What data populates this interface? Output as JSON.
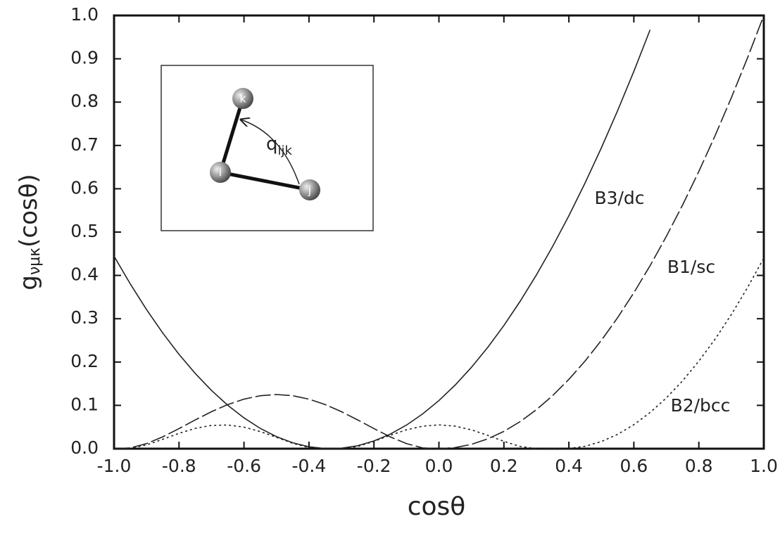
{
  "chart_data": {
    "type": "line",
    "x_label": "cosθ",
    "y_label": {
      "base": "g",
      "subscript": "νμκ",
      "rest": "(cosθ)"
    },
    "x": [
      -1.0,
      -0.95,
      -0.9,
      -0.85,
      -0.8,
      -0.75,
      -0.7,
      -0.65,
      -0.6,
      -0.55,
      -0.5,
      -0.45,
      -0.4,
      -0.35,
      -0.3,
      -0.25,
      -0.2,
      -0.15,
      -0.1,
      -0.05,
      0.0,
      0.05,
      0.1,
      0.15,
      0.2,
      0.25,
      0.3,
      0.35,
      0.4,
      0.45,
      0.5,
      0.55,
      0.6,
      0.65,
      0.7,
      0.75,
      0.8,
      0.85,
      0.9,
      0.95,
      1.0
    ],
    "series": [
      {
        "name": "B3/dc",
        "color": "#222222",
        "style": "solid",
        "values": [
          0.4444,
          0.3803,
          0.3211,
          0.2669,
          0.2178,
          0.1736,
          0.1344,
          0.1003,
          0.0711,
          0.0469,
          0.0278,
          0.0136,
          0.0044,
          0.0003,
          0.0011,
          0.0069,
          0.0178,
          0.0336,
          0.0544,
          0.0803,
          0.1111,
          0.1469,
          0.1878,
          0.2336,
          0.2844,
          0.3403,
          0.4011,
          0.4669,
          0.5378,
          0.6136,
          0.6944,
          0.7803,
          0.8711,
          0.9669,
          null,
          null,
          null,
          null,
          null,
          null,
          null
        ]
      },
      {
        "name": "B1/sc",
        "color": "#222222",
        "style": "dashed",
        "values": [
          0,
          0.0018,
          0.0117,
          0.0274,
          0.0464,
          0.0664,
          0.0854,
          0.1018,
          0.1144,
          0.1223,
          0.125,
          0.1223,
          0.1144,
          0.1018,
          0.0854,
          0.0664,
          0.0464,
          0.0274,
          0.0117,
          0.0018,
          0,
          0.0025,
          0.01,
          0.0225,
          0.04,
          0.0625,
          0.09,
          0.1225,
          0.16,
          0.2025,
          0.25,
          0.3025,
          0.36,
          0.4225,
          0.49,
          0.5625,
          0.64,
          0.7225,
          0.81,
          0.9025,
          1.0
        ]
      },
      {
        "name": "B2/bcc",
        "color": "#222222",
        "style": "dotted",
        "values": [
          0,
          0.0006,
          0.0087,
          0.0217,
          0.0355,
          0.0469,
          0.0537,
          0.0547,
          0.0497,
          0.0396,
          0.0262,
          0.0125,
          0.0024,
          0,
          0,
          0.0051,
          0.017,
          0.0309,
          0.0435,
          0.052,
          0.055,
          0.052,
          0.0435,
          0.0309,
          0.017,
          0.0051,
          0,
          0,
          0.0005,
          0.0056,
          0.0165,
          0.0331,
          0.0554,
          0.0835,
          0.1172,
          0.1567,
          0.202,
          0.2529,
          0.3096,
          0.372,
          0.4401
        ]
      }
    ],
    "xlim": [
      -1.0,
      1.0
    ],
    "ylim": [
      0.0,
      1.0
    ],
    "xticks": [
      {
        "value": -1.0,
        "label": "-1.0"
      },
      -0.8,
      -0.6,
      -0.4,
      -0.2,
      {
        "value": 0.0,
        "label": "0.0"
      },
      0.2,
      0.4,
      0.6,
      0.8,
      {
        "value": 1.0,
        "label": "1.0"
      }
    ],
    "yticks": [
      {
        "value": 0.0,
        "label": "0.0"
      },
      0.1,
      0.2,
      0.3,
      0.4,
      0.5,
      0.6,
      0.7,
      0.8,
      0.9,
      {
        "value": 1.0,
        "label": "1.0"
      }
    ],
    "grid": false,
    "inset": {
      "atoms": [
        "k",
        "i",
        "j"
      ],
      "angle_label": {
        "base": "q",
        "subscript": "ijk"
      }
    }
  }
}
